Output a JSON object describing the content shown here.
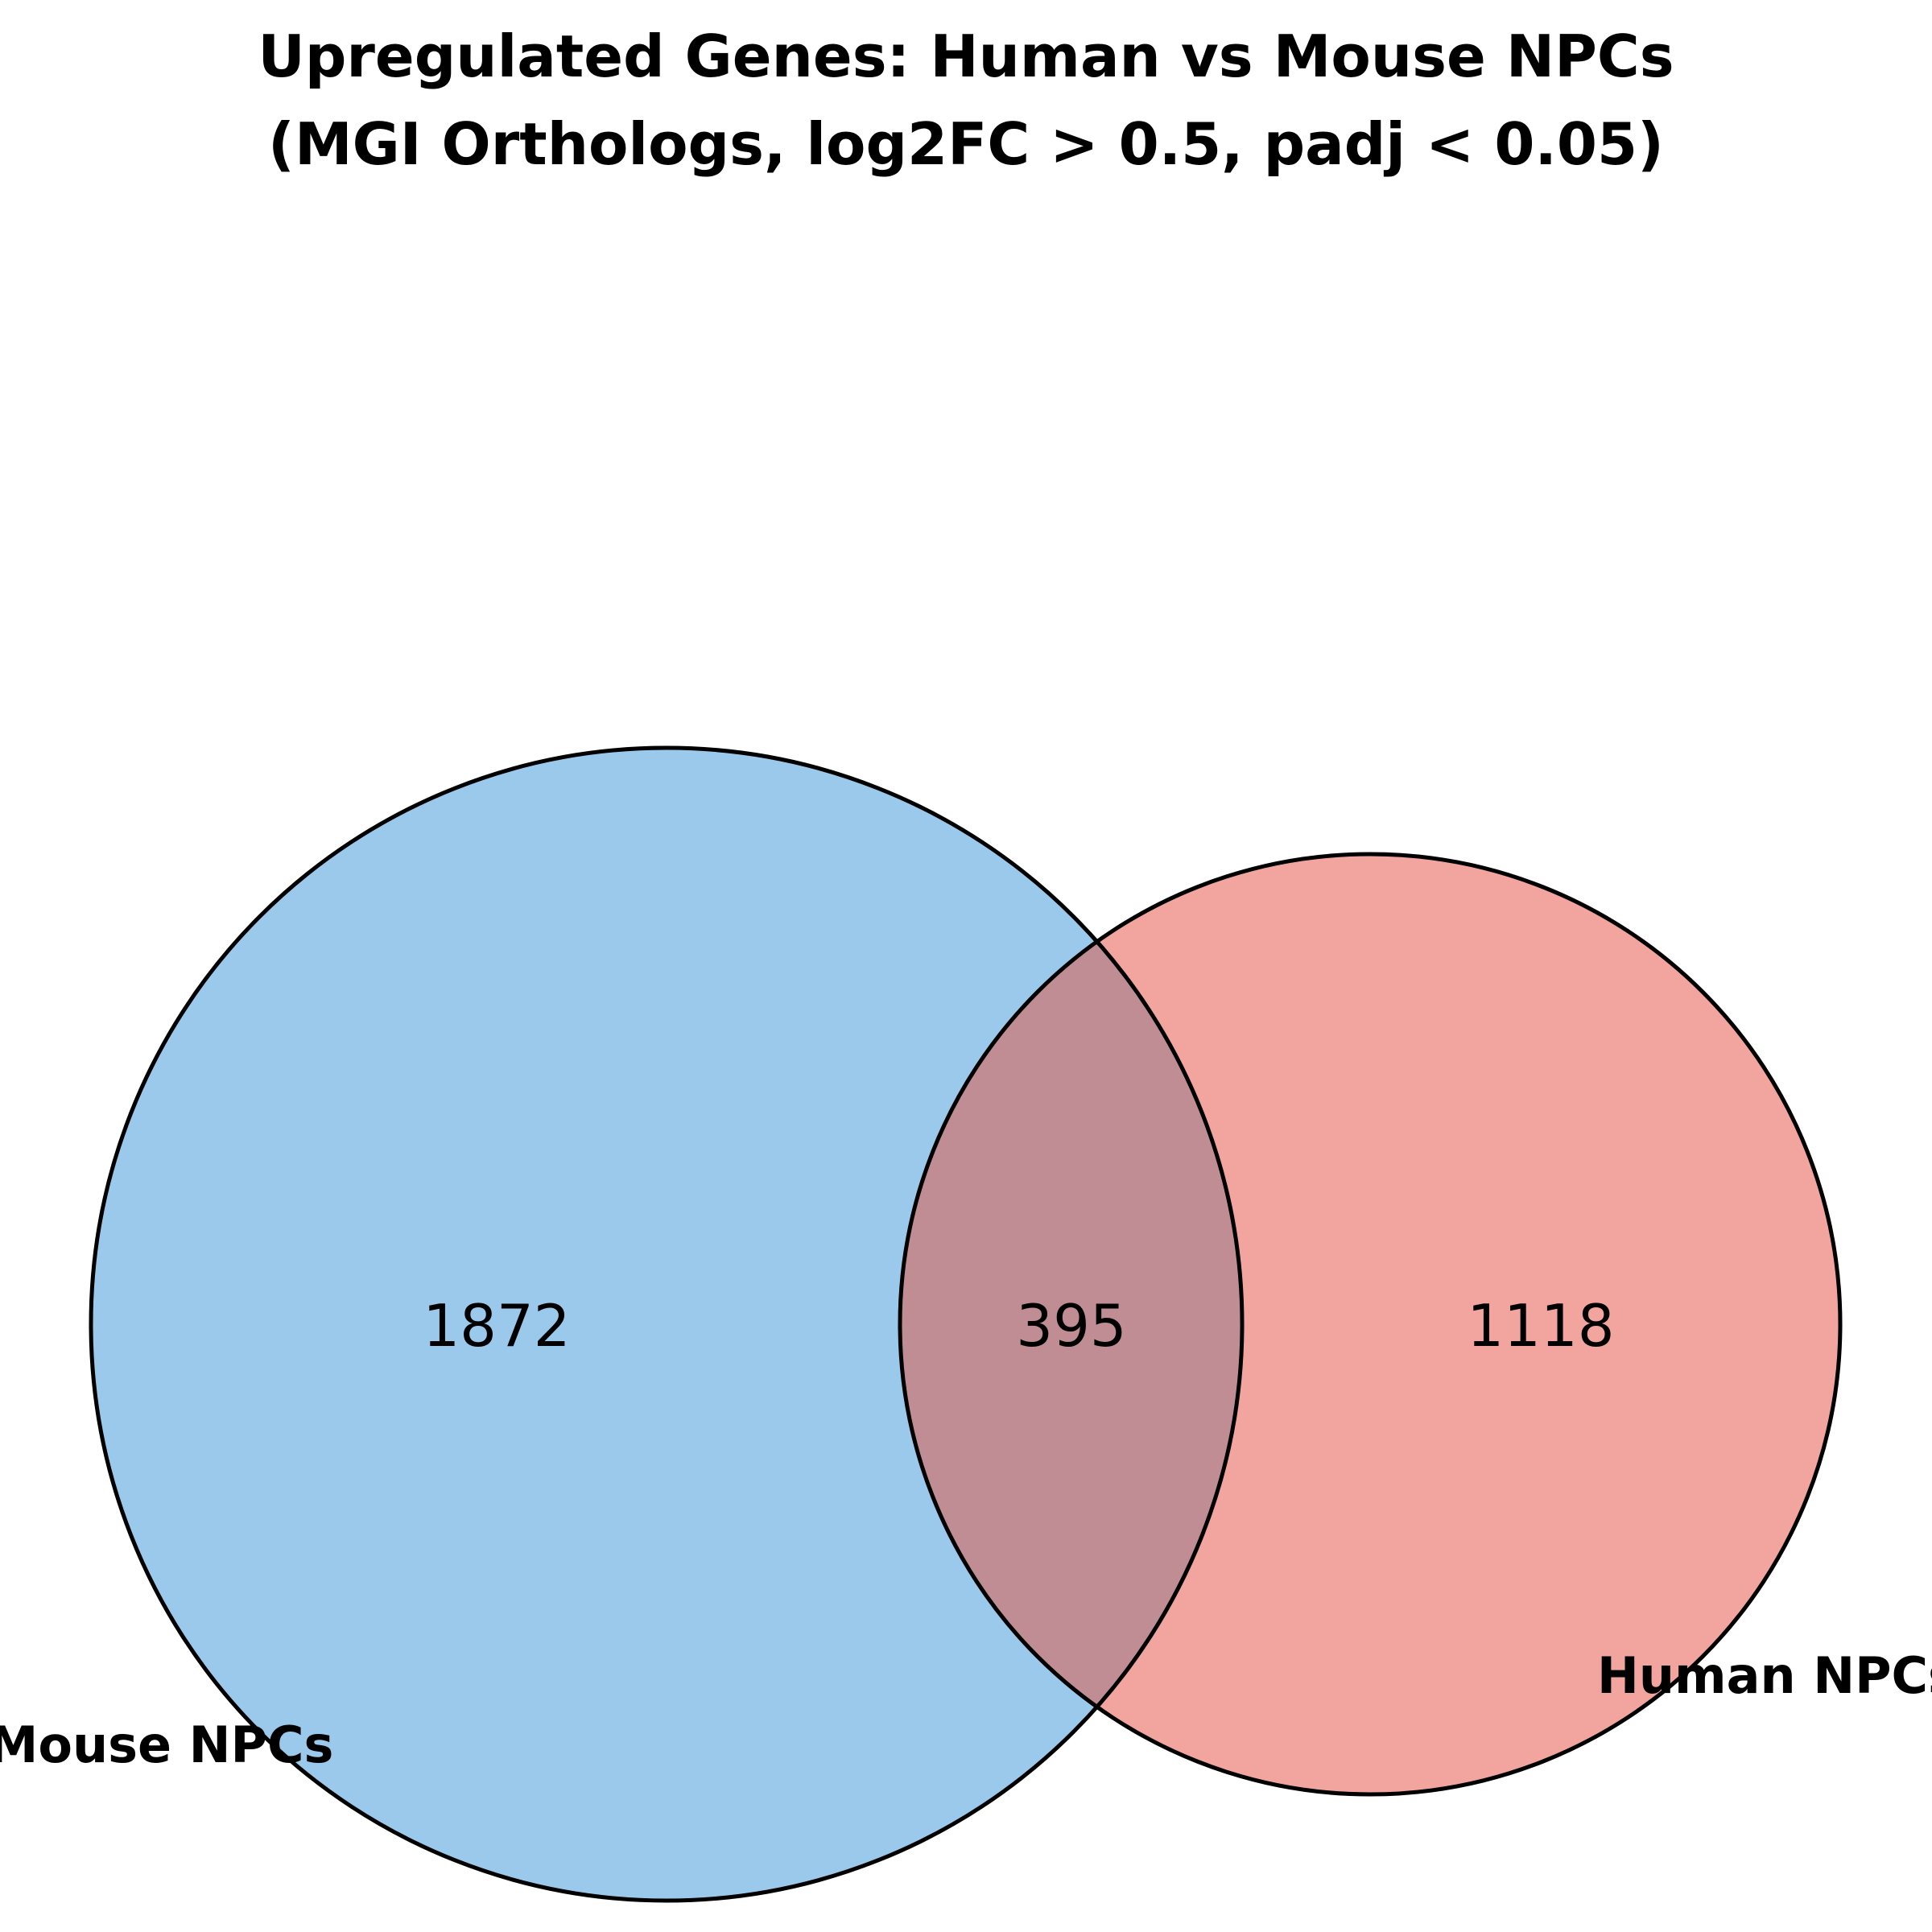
{
  "chart_data": {
    "type": "venn",
    "title": "Upregulated Genes: Human vs Mouse NPCs",
    "subtitle": "(MGI Orthologs, log2FC > 0.5, padj < 0.05)",
    "sets": [
      {
        "name": "Mouse NPCs",
        "only_count": "1872",
        "color": "#9bc9eb"
      },
      {
        "name": "Human NPCs",
        "only_count": "1118",
        "color": "#f1a59e"
      }
    ],
    "intersection_count": "395",
    "intersection_color": "#c18d95",
    "outline_color": "#000000"
  }
}
